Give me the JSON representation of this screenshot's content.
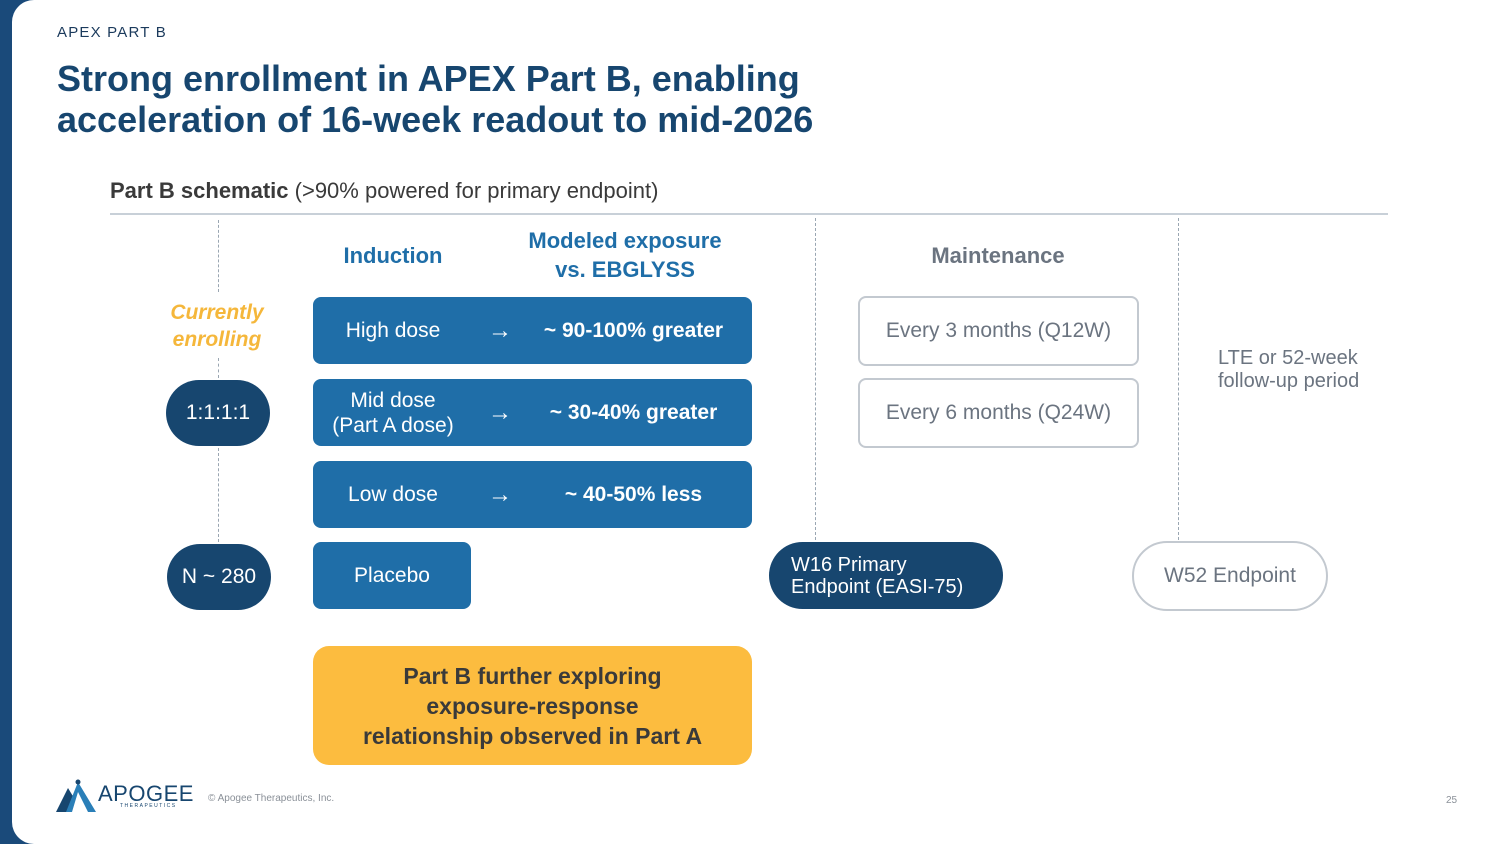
{
  "header": {
    "section": "APEX PART B",
    "title_line1": "Strong enrollment in APEX Part B, enabling",
    "title_line2": "acceleration of 16-week readout to mid-2026"
  },
  "subhead": {
    "bold": "Part B schematic",
    "rest": " (>90% powered for primary endpoint)"
  },
  "columns": {
    "induction": "Induction",
    "exposure_line1": "Modeled exposure",
    "exposure_line2": "vs. EBGLYSS",
    "maintenance": "Maintenance"
  },
  "status": {
    "line1": "Currently",
    "line2": "enrolling"
  },
  "ratio": "1:1:1:1",
  "n": "N ~ 280",
  "arms": [
    {
      "dose": "High dose",
      "exposure": "~ 90-100% greater"
    },
    {
      "dose_line1": "Mid dose",
      "dose_line2": "(Part A dose)",
      "exposure": "~ 30-40% greater"
    },
    {
      "dose": "Low dose",
      "exposure": "~ 40-50% less"
    }
  ],
  "placebo": "Placebo",
  "arrow": "→",
  "maintenance": [
    "Every 3 months (Q12W)",
    "Every 6 months (Q24W)"
  ],
  "lte": {
    "line1": "LTE or 52-week",
    "line2": "follow-up period"
  },
  "w16": {
    "line1": "W16 Primary",
    "line2": "Endpoint (EASI-75)"
  },
  "w52": "W52 Endpoint",
  "callout": {
    "line1": "Part B further exploring",
    "line2": "exposure-response",
    "line3": "relationship observed in Part A"
  },
  "footer": {
    "copyright": "© Apogee Therapeutics, Inc.",
    "page": "25",
    "logo_text": "APOGEE",
    "logo_sub": "THERAPEUTICS"
  },
  "colors": {
    "navy": "#17466f",
    "blue": "#1f6ea8",
    "yellow": "#fcbc3f",
    "accent_text": "#f5b73b"
  }
}
